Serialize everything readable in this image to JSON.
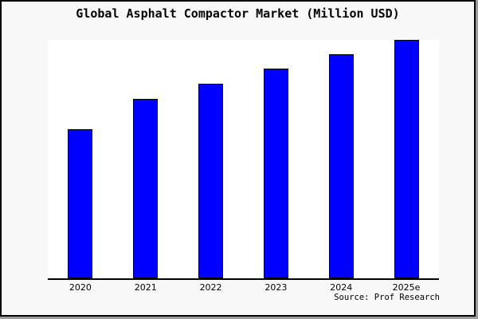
{
  "figure": {
    "title": "Global Asphalt Compactor Market (Million USD)",
    "source_note": "Source: Prof Research",
    "colors": {
      "bar_fill": "#0000ff",
      "bar_edge": "#000000",
      "figure_background": "#f8f8f8",
      "plot_background": "#ffffff",
      "frame_border": "#000000",
      "text": "#000000"
    }
  },
  "chart_data": {
    "type": "bar",
    "title": "Global Asphalt Compactor Market (Million USD)",
    "categories": [
      "2020",
      "2021",
      "2022",
      "2023",
      "2024",
      "2025e"
    ],
    "values": [
      62.5,
      75.3,
      81.5,
      87.8,
      93.9,
      100
    ],
    "value_scale_note": "y-axis has no tick labels or gridlines in source image; values are relative bar heights with tallest bar (2025e) = 100",
    "xlabel": "",
    "ylabel": "",
    "ylim": [
      0,
      100
    ],
    "grid": false,
    "legend": false,
    "bar_color": "#0000ff",
    "annotations": [
      "Source: Prof Research"
    ]
  }
}
